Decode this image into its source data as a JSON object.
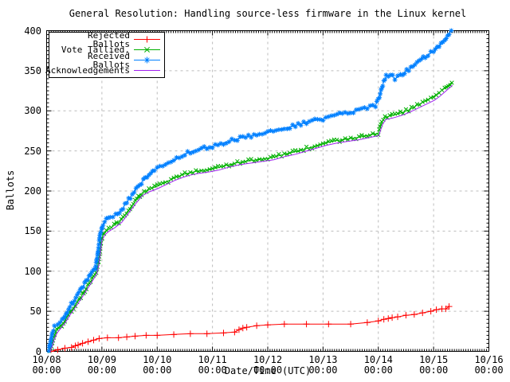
{
  "page": {
    "background": "#ffffff",
    "grid_color": "#bcbcbc",
    "axis_color": "#000000"
  },
  "chart_data": {
    "type": "line",
    "title": "General Resolution: Handling source-less firmware in the Linux kernel",
    "xlabel": "Date/Time (UTC)",
    "ylabel": "Ballots",
    "ylim": [
      0,
      400
    ],
    "y_ticks": [
      0,
      50,
      100,
      150,
      200,
      250,
      300,
      350,
      400
    ],
    "y_minor_step": 5,
    "x_unit": "days since 10/08 00:00 UTC",
    "xlim_days": [
      0,
      8
    ],
    "x_ticks": [
      {
        "day": 0,
        "date": "10/08",
        "time": "00:00"
      },
      {
        "day": 1,
        "date": "10/09",
        "time": "00:00"
      },
      {
        "day": 2,
        "date": "10/10",
        "time": "00:00"
      },
      {
        "day": 3,
        "date": "10/11",
        "time": "00:00"
      },
      {
        "day": 4,
        "date": "10/12",
        "time": "00:00"
      },
      {
        "day": 5,
        "date": "10/13",
        "time": "00:00"
      },
      {
        "day": 6,
        "date": "10/14",
        "time": "00:00"
      },
      {
        "day": 7,
        "date": "10/15",
        "time": "00:00"
      },
      {
        "day": 8,
        "date": "10/16",
        "time": "00:00"
      }
    ],
    "grid": true,
    "legend": {
      "position": "top-left",
      "border": true
    },
    "series": [
      {
        "name": "Rejected Ballots",
        "color": "#ff0000",
        "marker": "plus",
        "style": "points",
        "points": [
          [
            0.08,
            0
          ],
          [
            0.2,
            2
          ],
          [
            0.33,
            4
          ],
          [
            0.45,
            5
          ],
          [
            0.52,
            7
          ],
          [
            0.57,
            8
          ],
          [
            0.65,
            10
          ],
          [
            0.75,
            12
          ],
          [
            0.85,
            14
          ],
          [
            0.95,
            16
          ],
          [
            1.1,
            17
          ],
          [
            1.3,
            17
          ],
          [
            1.45,
            18
          ],
          [
            1.6,
            19
          ],
          [
            1.8,
            20
          ],
          [
            2.0,
            20
          ],
          [
            2.3,
            21
          ],
          [
            2.6,
            22
          ],
          [
            2.9,
            22
          ],
          [
            3.2,
            23
          ],
          [
            3.4,
            24
          ],
          [
            3.48,
            27
          ],
          [
            3.55,
            29
          ],
          [
            3.62,
            30
          ],
          [
            3.8,
            32
          ],
          [
            4.0,
            33
          ],
          [
            4.3,
            34
          ],
          [
            4.7,
            34
          ],
          [
            5.1,
            34
          ],
          [
            5.5,
            34
          ],
          [
            5.8,
            36
          ],
          [
            6.0,
            38
          ],
          [
            6.1,
            40
          ],
          [
            6.18,
            41
          ],
          [
            6.25,
            42
          ],
          [
            6.35,
            43
          ],
          [
            6.5,
            45
          ],
          [
            6.65,
            46
          ],
          [
            6.8,
            48
          ],
          [
            6.95,
            50
          ],
          [
            7.05,
            52
          ],
          [
            7.15,
            53
          ],
          [
            7.22,
            53
          ],
          [
            7.28,
            56
          ]
        ]
      },
      {
        "name": "Vote Tallied,",
        "color": "#00b000",
        "marker": "cross",
        "style": "dense",
        "points": [
          [
            0.05,
            0
          ],
          [
            0.09,
            8
          ],
          [
            0.13,
            18
          ],
          [
            0.18,
            26
          ],
          [
            0.25,
            31
          ],
          [
            0.33,
            38
          ],
          [
            0.42,
            48
          ],
          [
            0.52,
            58
          ],
          [
            0.62,
            68
          ],
          [
            0.72,
            79
          ],
          [
            0.82,
            90
          ],
          [
            0.9,
            99
          ],
          [
            0.94,
            112
          ],
          [
            0.99,
            140
          ],
          [
            1.04,
            148
          ],
          [
            1.12,
            152
          ],
          [
            1.22,
            157
          ],
          [
            1.35,
            164
          ],
          [
            1.48,
            176
          ],
          [
            1.6,
            187
          ],
          [
            1.72,
            197
          ],
          [
            1.85,
            202
          ],
          [
            2.0,
            206
          ],
          [
            2.15,
            211
          ],
          [
            2.3,
            216
          ],
          [
            2.45,
            220
          ],
          [
            2.6,
            223
          ],
          [
            2.75,
            225
          ],
          [
            2.95,
            227
          ],
          [
            3.1,
            229
          ],
          [
            3.3,
            233
          ],
          [
            3.5,
            236
          ],
          [
            3.7,
            238
          ],
          [
            3.9,
            240
          ],
          [
            4.1,
            242
          ],
          [
            4.3,
            246
          ],
          [
            4.5,
            249
          ],
          [
            4.7,
            253
          ],
          [
            4.9,
            257
          ],
          [
            5.05,
            260
          ],
          [
            5.25,
            263
          ],
          [
            5.45,
            265
          ],
          [
            5.65,
            267
          ],
          [
            5.85,
            270
          ],
          [
            6.0,
            272
          ],
          [
            6.06,
            285
          ],
          [
            6.12,
            292
          ],
          [
            6.25,
            294
          ],
          [
            6.4,
            297
          ],
          [
            6.55,
            301
          ],
          [
            6.7,
            307
          ],
          [
            6.85,
            312
          ],
          [
            7.0,
            318
          ],
          [
            7.1,
            323
          ],
          [
            7.2,
            328
          ],
          [
            7.3,
            334
          ],
          [
            7.33,
            335
          ]
        ]
      },
      {
        "name": "Received Ballots",
        "color": "#0080ff",
        "marker": "asterisk",
        "style": "dense",
        "points": [
          [
            0.04,
            0
          ],
          [
            0.07,
            12
          ],
          [
            0.1,
            24
          ],
          [
            0.14,
            30
          ],
          [
            0.2,
            33
          ],
          [
            0.28,
            38
          ],
          [
            0.35,
            47
          ],
          [
            0.42,
            56
          ],
          [
            0.5,
            63
          ],
          [
            0.58,
            72
          ],
          [
            0.66,
            81
          ],
          [
            0.74,
            90
          ],
          [
            0.82,
            97
          ],
          [
            0.88,
            104
          ],
          [
            0.92,
            120
          ],
          [
            0.97,
            146
          ],
          [
            1.02,
            158
          ],
          [
            1.08,
            164
          ],
          [
            1.15,
            167
          ],
          [
            1.25,
            170
          ],
          [
            1.35,
            176
          ],
          [
            1.45,
            186
          ],
          [
            1.55,
            196
          ],
          [
            1.65,
            206
          ],
          [
            1.75,
            213
          ],
          [
            1.85,
            219
          ],
          [
            1.95,
            226
          ],
          [
            2.05,
            230
          ],
          [
            2.2,
            234
          ],
          [
            2.35,
            240
          ],
          [
            2.5,
            246
          ],
          [
            2.65,
            250
          ],
          [
            2.8,
            253
          ],
          [
            2.95,
            255
          ],
          [
            3.05,
            257
          ],
          [
            3.25,
            261
          ],
          [
            3.45,
            265
          ],
          [
            3.65,
            268
          ],
          [
            3.85,
            271
          ],
          [
            4.0,
            273
          ],
          [
            4.2,
            277
          ],
          [
            4.4,
            280
          ],
          [
            4.6,
            284
          ],
          [
            4.8,
            287
          ],
          [
            5.0,
            290
          ],
          [
            5.2,
            294
          ],
          [
            5.4,
            297
          ],
          [
            5.6,
            300
          ],
          [
            5.8,
            304
          ],
          [
            5.95,
            307
          ],
          [
            6.02,
            318
          ],
          [
            6.08,
            333
          ],
          [
            6.14,
            343
          ],
          [
            6.22,
            345
          ],
          [
            6.3,
            340
          ],
          [
            6.4,
            344
          ],
          [
            6.55,
            352
          ],
          [
            6.7,
            360
          ],
          [
            6.85,
            368
          ],
          [
            7.0,
            374
          ],
          [
            7.1,
            381
          ],
          [
            7.2,
            389
          ],
          [
            7.28,
            397
          ],
          [
            7.32,
            400
          ]
        ]
      },
      {
        "name": "Acknowledgements",
        "color": "#a020f0",
        "marker": "none",
        "style": "line",
        "points": [
          [
            0.06,
            0
          ],
          [
            0.1,
            6
          ],
          [
            0.14,
            15
          ],
          [
            0.19,
            23
          ],
          [
            0.26,
            29
          ],
          [
            0.34,
            36
          ],
          [
            0.43,
            46
          ],
          [
            0.53,
            56
          ],
          [
            0.63,
            66
          ],
          [
            0.73,
            77
          ],
          [
            0.83,
            88
          ],
          [
            0.91,
            97
          ],
          [
            0.95,
            110
          ],
          [
            1.0,
            138
          ],
          [
            1.05,
            145
          ],
          [
            1.13,
            150
          ],
          [
            1.23,
            154
          ],
          [
            1.36,
            161
          ],
          [
            1.49,
            173
          ],
          [
            1.61,
            184
          ],
          [
            1.73,
            194
          ],
          [
            1.86,
            199
          ],
          [
            2.01,
            203
          ],
          [
            2.16,
            208
          ],
          [
            2.31,
            213
          ],
          [
            2.46,
            217
          ],
          [
            2.61,
            220
          ],
          [
            2.76,
            222
          ],
          [
            2.96,
            224
          ],
          [
            3.11,
            226
          ],
          [
            3.31,
            230
          ],
          [
            3.51,
            233
          ],
          [
            3.71,
            235
          ],
          [
            3.91,
            237
          ],
          [
            4.11,
            239
          ],
          [
            4.31,
            243
          ],
          [
            4.51,
            246
          ],
          [
            4.71,
            250
          ],
          [
            4.91,
            254
          ],
          [
            5.06,
            257
          ],
          [
            5.26,
            260
          ],
          [
            5.46,
            262
          ],
          [
            5.66,
            264
          ],
          [
            5.86,
            267
          ],
          [
            6.01,
            269
          ],
          [
            6.07,
            282
          ],
          [
            6.13,
            289
          ],
          [
            6.26,
            291
          ],
          [
            6.41,
            294
          ],
          [
            6.56,
            298
          ],
          [
            6.71,
            303
          ],
          [
            6.86,
            308
          ],
          [
            7.01,
            313
          ],
          [
            7.11,
            318
          ],
          [
            7.21,
            324
          ],
          [
            7.31,
            330
          ],
          [
            7.34,
            332
          ]
        ]
      }
    ]
  }
}
